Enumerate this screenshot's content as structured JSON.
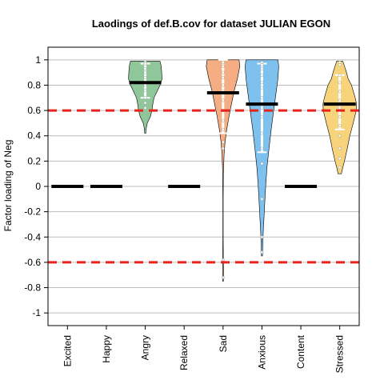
{
  "chart_data": {
    "type": "violin",
    "title": "Laodings of def.B.cov for dataset JULIAN EGON",
    "ylabel": "Factor loading of Neg",
    "xlabel": "",
    "ylim": [
      -1.1,
      1.1
    ],
    "yticks": [
      "-1",
      "-0.8",
      "-0.6",
      "-0.4",
      "-0.2",
      "0",
      "0.2",
      "0.4",
      "0.6",
      "0.8",
      "1"
    ],
    "grid": true,
    "threshold_lines": [
      0.6,
      -0.6
    ],
    "threshold_color": "#e8231b",
    "categories": [
      "Excited",
      "Happy",
      "Angry",
      "Relaxed",
      "Sad",
      "Anxious",
      "Content",
      "Stressed"
    ],
    "series": [
      {
        "median": 0,
        "violin": null,
        "color": null,
        "points": []
      },
      {
        "median": 0,
        "violin": null,
        "color": null,
        "points": []
      },
      {
        "median": 0.82,
        "color": "#8fc79a",
        "whisker": [
          0.7,
          0.97
        ],
        "violin": [
          [
            0.42,
            0.03
          ],
          [
            0.46,
            0.06
          ],
          [
            0.5,
            0.12
          ],
          [
            0.55,
            0.3
          ],
          [
            0.6,
            0.4
          ],
          [
            0.65,
            0.45
          ],
          [
            0.7,
            0.52
          ],
          [
            0.75,
            0.7
          ],
          [
            0.8,
            0.88
          ],
          [
            0.85,
            1.0
          ],
          [
            0.9,
            0.98
          ],
          [
            0.95,
            0.95
          ],
          [
            0.99,
            0.88
          ]
        ],
        "points": [
          0.99,
          0.98,
          0.97,
          0.93,
          0.9,
          0.86,
          0.8,
          0.76,
          0.7,
          0.66,
          0.62
        ]
      },
      {
        "median": 0,
        "violin": null,
        "color": null,
        "points": []
      },
      {
        "median": 0.74,
        "color": "#f5ad83",
        "whisker": [
          0.42,
          1.0
        ],
        "violin": [
          [
            -0.75,
            0.02
          ],
          [
            -0.7,
            0.03
          ],
          [
            -0.6,
            0.02
          ],
          [
            -0.4,
            0.01
          ],
          [
            -0.1,
            0.01
          ],
          [
            0.1,
            0.02
          ],
          [
            0.25,
            0.06
          ],
          [
            0.35,
            0.12
          ],
          [
            0.45,
            0.22
          ],
          [
            0.55,
            0.35
          ],
          [
            0.65,
            0.5
          ],
          [
            0.75,
            0.65
          ],
          [
            0.85,
            0.85
          ],
          [
            0.95,
            1.0
          ],
          [
            1.0,
            0.95
          ]
        ],
        "points": [
          0.98,
          0.95,
          0.9,
          0.86,
          0.8,
          0.75,
          0.68,
          0.6,
          0.52,
          0.45,
          0.35,
          0.3,
          -0.58,
          -0.72
        ]
      },
      {
        "median": 0.65,
        "color": "#7ec0ee",
        "whisker": [
          0.27,
          0.97
        ],
        "violin": [
          [
            -0.55,
            0.03
          ],
          [
            -0.45,
            0.05
          ],
          [
            -0.35,
            0.08
          ],
          [
            -0.25,
            0.12
          ],
          [
            -0.1,
            0.18
          ],
          [
            0.0,
            0.22
          ],
          [
            0.15,
            0.3
          ],
          [
            0.3,
            0.42
          ],
          [
            0.45,
            0.55
          ],
          [
            0.6,
            0.7
          ],
          [
            0.75,
            0.85
          ],
          [
            0.85,
            0.95
          ],
          [
            0.95,
            1.0
          ],
          [
            1.0,
            0.95
          ]
        ],
        "points": [
          0.98,
          0.96,
          0.93,
          0.88,
          0.82,
          0.78,
          0.7,
          0.62,
          0.55,
          0.42,
          0.3,
          0.18,
          -0.1,
          -0.4,
          -0.52
        ]
      },
      {
        "median": 0,
        "violin": null,
        "color": null,
        "points": []
      },
      {
        "median": 0.65,
        "color": "#f7d47c",
        "whisker": [
          0.45,
          0.88
        ],
        "violin": [
          [
            0.1,
            0.1
          ],
          [
            0.15,
            0.18
          ],
          [
            0.2,
            0.28
          ],
          [
            0.3,
            0.45
          ],
          [
            0.4,
            0.6
          ],
          [
            0.5,
            0.8
          ],
          [
            0.6,
            0.98
          ],
          [
            0.65,
            1.0
          ],
          [
            0.7,
            0.92
          ],
          [
            0.8,
            0.7
          ],
          [
            0.85,
            0.5
          ],
          [
            0.9,
            0.4
          ],
          [
            0.95,
            0.28
          ],
          [
            0.99,
            0.18
          ]
        ],
        "points": [
          0.98,
          0.96,
          0.88,
          0.82,
          0.75,
          0.68,
          0.62,
          0.55,
          0.48,
          0.4,
          0.3,
          0.22,
          0.15
        ]
      }
    ]
  }
}
